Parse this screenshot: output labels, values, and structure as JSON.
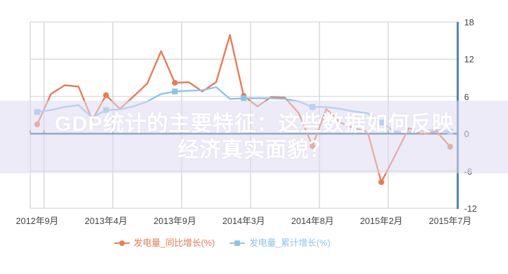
{
  "overlay_title": {
    "line1": "GDP统计的主要特征：这些数据如何反映",
    "line2": "经济真实面貌？"
  },
  "legend": [
    {
      "label": "发电量_同比增长(%)",
      "color": "#ea7a4f",
      "marker": "circle"
    },
    {
      "label": "发电量_累计增长(%)",
      "color": "#8cc4ec",
      "marker": "square"
    }
  ],
  "chart_data": {
    "type": "line",
    "title": "",
    "xlabel": "",
    "ylabel": "",
    "ylim": [
      -12,
      18
    ],
    "yticks": [
      18,
      12,
      6,
      0,
      -6,
      -12
    ],
    "y_axis_position": "right",
    "grid": true,
    "legend_position": "bottom",
    "categories": [
      "2012年9月",
      "2012年10月",
      "2012年11月",
      "2012年12月",
      "2013年3月",
      "2013年4月",
      "2013年5月",
      "2013年6月",
      "2013年7月",
      "2013年8月",
      "2013年9月",
      "2013年10月",
      "2013年11月",
      "2013年12月",
      "2014年2月",
      "2014年3月",
      "2014年4月",
      "2014年5月",
      "2014年6月",
      "2014年7月",
      "2014年8月",
      "2014年9月",
      "2014年10月",
      "2014年11月",
      "2014年12月",
      "2015年2月",
      "2015年3月",
      "2015年4月",
      "2015年5月",
      "2015年6月",
      "2015年7月"
    ],
    "xticks": [
      {
        "index": 0,
        "label": "2012年9月"
      },
      {
        "index": 5,
        "label": "2013年4月"
      },
      {
        "index": 10,
        "label": "2013年9月"
      },
      {
        "index": 15,
        "label": "2014年3月"
      },
      {
        "index": 20,
        "label": "2014年8月"
      },
      {
        "index": 25,
        "label": "2015年2月"
      },
      {
        "index": 30,
        "label": "2015年7月"
      }
    ],
    "series": [
      {
        "name": "发电量_同比增长(%)",
        "color": "#ea7a4f",
        "marker": "circle",
        "marker_indices": [
          0,
          5,
          10,
          15,
          20,
          25,
          30
        ],
        "values": [
          1.5,
          6.4,
          7.8,
          7.6,
          2.2,
          6.2,
          4.0,
          6.0,
          8.1,
          13.3,
          8.2,
          8.3,
          6.8,
          8.3,
          15.9,
          6.1,
          4.4,
          5.9,
          5.8,
          3.3,
          -2.0,
          4.0,
          1.8,
          0.9,
          0.3,
          -7.8,
          -3.5,
          0.9,
          -0.1,
          0.4,
          -2.1
        ]
      },
      {
        "name": "发电量_累计增长(%)",
        "color": "#8cc4ec",
        "marker": "square",
        "marker_indices": [
          0,
          5,
          10,
          15,
          20,
          25,
          30
        ],
        "values": [
          3.5,
          3.8,
          4.3,
          4.6,
          2.6,
          3.8,
          3.9,
          4.4,
          5.2,
          6.4,
          6.8,
          6.9,
          7.0,
          7.5,
          5.6,
          5.7,
          5.7,
          5.7,
          5.6,
          5.2,
          4.3,
          4.3,
          4.0,
          3.6,
          3.3,
          1.8,
          0.3,
          0.3,
          0.5,
          0.6,
          0.3
        ]
      }
    ]
  }
}
